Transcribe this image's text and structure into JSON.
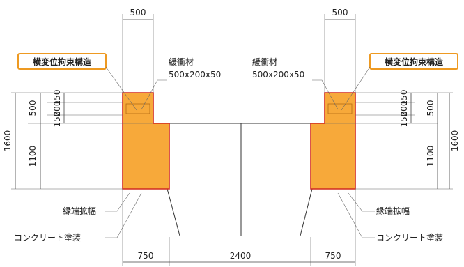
{
  "labels": {
    "restraint_left": "横変位拘束構造",
    "restraint_right": "横変位拘束構造",
    "cushion_left": "緩衝材",
    "cushion_size_left": "500x200x50",
    "cushion_right": "緩衝材",
    "cushion_size_right": "500x200x50",
    "edge_widen_left": "縁端拡幅",
    "edge_widen_right": "縁端拡幅",
    "coating_left": "コンクリート塗装",
    "coating_right": "コンクリート塗装"
  },
  "dimensions": {
    "top_left": "500",
    "top_right": "500",
    "h_total_left": "1600",
    "h_total_right": "1600",
    "h_upper_left": "500",
    "h_upper_right": "500",
    "h_lower_left": "1100",
    "h_lower_right": "1100",
    "h_150a_left": "150",
    "h_200_left": "200",
    "h_150b_left": "150",
    "h_150a_right": "150",
    "h_200_right": "200",
    "h_150b_right": "150",
    "bottom_left": "750",
    "bottom_center": "2400",
    "bottom_right": "750"
  },
  "colors": {
    "fill": "#f7a93a",
    "outline": "#d12a1f",
    "tag_border": "#ee9a22"
  }
}
